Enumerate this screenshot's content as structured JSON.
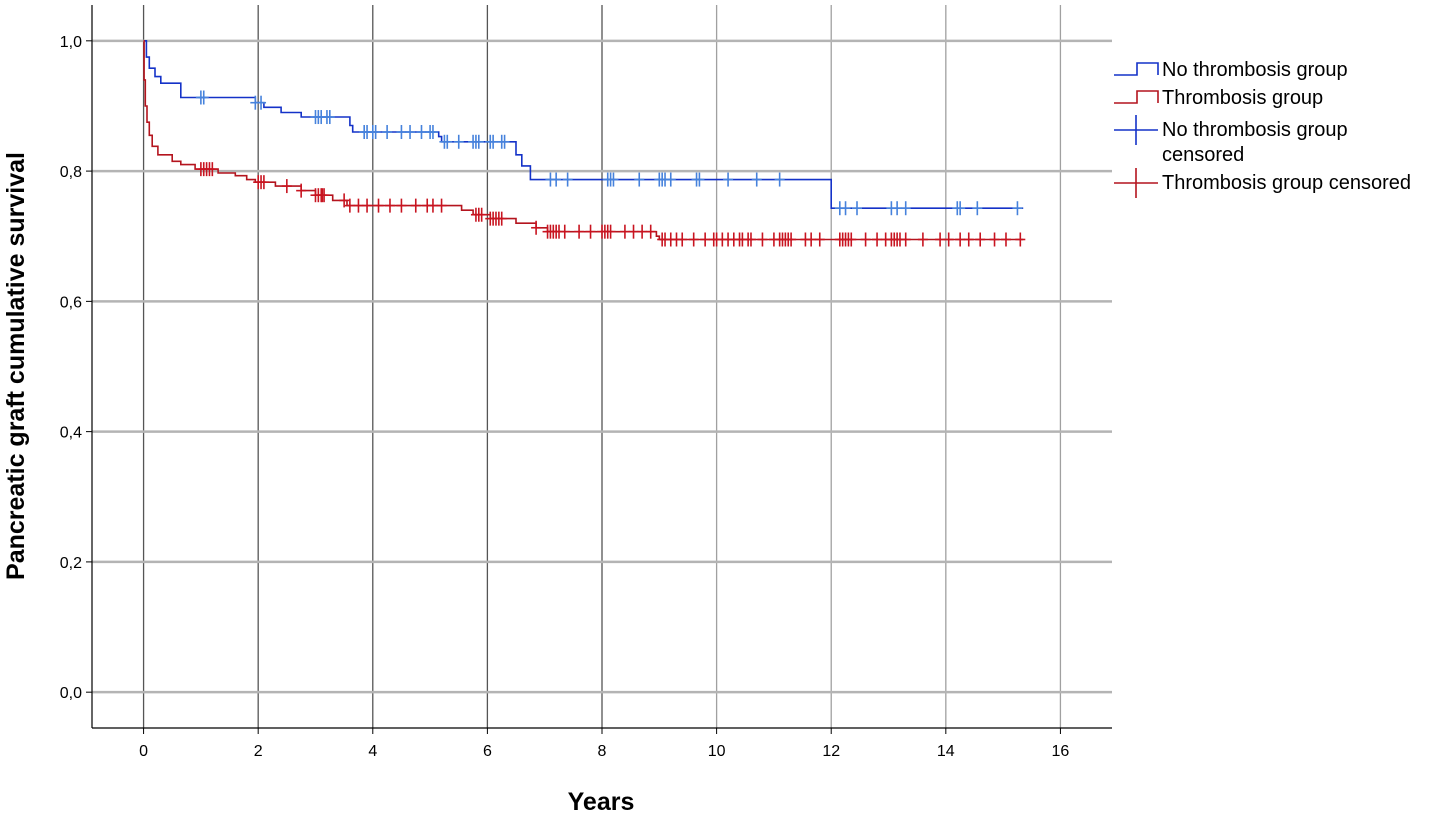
{
  "chart_data": {
    "type": "line",
    "subtype": "kaplan-meier step survival curves",
    "xlabel": "Years",
    "ylabel": "Pancreatic graft cumulative survival",
    "xlim": [
      -0.9,
      16.9
    ],
    "ylim": [
      -0.055,
      1.055
    ],
    "x_ticks": [
      0,
      2,
      4,
      6,
      8,
      10,
      12,
      14,
      16
    ],
    "x_tick_labels": [
      "0",
      "2",
      "4",
      "6",
      "8",
      "10",
      "12",
      "14",
      "16"
    ],
    "y_ticks": [
      0,
      0.2,
      0.4,
      0.6,
      0.8,
      1.0
    ],
    "y_tick_labels": [
      "0,0",
      "0,2",
      "0,4",
      "0,6",
      "0,8",
      "1,0"
    ],
    "grid": "on",
    "legend_position": "right",
    "series": [
      {
        "name": "No thrombosis group",
        "color": "#1432c8",
        "censor_color": "#4682dc",
        "steps": [
          [
            0,
            1.0
          ],
          [
            0.05,
            0.975
          ],
          [
            0.1,
            0.958
          ],
          [
            0.2,
            0.945
          ],
          [
            0.3,
            0.935
          ],
          [
            0.65,
            0.913
          ],
          [
            1.95,
            0.905
          ],
          [
            2.1,
            0.898
          ],
          [
            2.4,
            0.89
          ],
          [
            2.75,
            0.883
          ],
          [
            3.6,
            0.87
          ],
          [
            3.65,
            0.86
          ],
          [
            5.15,
            0.853
          ],
          [
            5.2,
            0.845
          ],
          [
            6.5,
            0.825
          ],
          [
            6.6,
            0.808
          ],
          [
            6.75,
            0.787
          ],
          [
            12.0,
            0.743
          ],
          [
            15.35,
            0.743
          ]
        ],
        "censored": [
          1.0,
          1.05,
          1.95,
          2.05,
          3.0,
          3.05,
          3.1,
          3.2,
          3.25,
          3.85,
          3.9,
          4.0,
          4.05,
          4.25,
          4.5,
          4.65,
          4.85,
          5.0,
          5.05,
          5.25,
          5.3,
          5.5,
          5.75,
          5.8,
          5.85,
          6.05,
          6.1,
          6.25,
          6.3,
          7.1,
          7.2,
          7.4,
          8.1,
          8.15,
          8.2,
          8.65,
          9.0,
          9.05,
          9.1,
          9.2,
          9.65,
          9.7,
          10.2,
          10.7,
          11.1,
          12.15,
          12.25,
          12.45,
          13.05,
          13.15,
          13.3,
          14.2,
          14.25,
          14.55,
          15.25
        ]
      },
      {
        "name": "Thrombosis group",
        "color": "#b4141e",
        "censor_color": "#c81420",
        "steps": [
          [
            0,
            1.0
          ],
          [
            0.01,
            0.94
          ],
          [
            0.03,
            0.9
          ],
          [
            0.06,
            0.875
          ],
          [
            0.1,
            0.855
          ],
          [
            0.15,
            0.838
          ],
          [
            0.25,
            0.825
          ],
          [
            0.5,
            0.815
          ],
          [
            0.65,
            0.81
          ],
          [
            0.9,
            0.803
          ],
          [
            1.3,
            0.797
          ],
          [
            1.6,
            0.793
          ],
          [
            1.8,
            0.787
          ],
          [
            1.95,
            0.783
          ],
          [
            2.3,
            0.777
          ],
          [
            2.75,
            0.77
          ],
          [
            3.0,
            0.763
          ],
          [
            3.3,
            0.755
          ],
          [
            3.55,
            0.747
          ],
          [
            5.55,
            0.74
          ],
          [
            5.75,
            0.733
          ],
          [
            6.05,
            0.727
          ],
          [
            6.5,
            0.72
          ],
          [
            6.85,
            0.713
          ],
          [
            7.05,
            0.707
          ],
          [
            8.95,
            0.7
          ],
          [
            9.0,
            0.695
          ],
          [
            15.35,
            0.695
          ]
        ],
        "censored": [
          1.0,
          1.05,
          1.1,
          1.15,
          1.2,
          2.0,
          2.05,
          2.1,
          2.5,
          2.75,
          3.0,
          3.05,
          3.1,
          3.12,
          3.15,
          3.5,
          3.6,
          3.75,
          3.9,
          4.1,
          4.3,
          4.5,
          4.75,
          4.95,
          5.05,
          5.2,
          5.8,
          5.85,
          5.9,
          6.05,
          6.1,
          6.15,
          6.2,
          6.25,
          6.85,
          7.05,
          7.1,
          7.15,
          7.2,
          7.25,
          7.35,
          7.6,
          7.8,
          8.0,
          8.05,
          8.1,
          8.15,
          8.4,
          8.55,
          8.7,
          8.85,
          9.05,
          9.1,
          9.2,
          9.3,
          9.4,
          9.6,
          9.8,
          9.95,
          10.0,
          10.1,
          10.2,
          10.3,
          10.4,
          10.45,
          10.55,
          10.6,
          10.8,
          11.0,
          11.1,
          11.15,
          11.2,
          11.25,
          11.3,
          11.55,
          11.65,
          11.8,
          12.15,
          12.2,
          12.25,
          12.3,
          12.35,
          12.6,
          12.8,
          12.95,
          13.05,
          13.1,
          13.15,
          13.2,
          13.3,
          13.6,
          13.9,
          14.05,
          14.25,
          14.4,
          14.6,
          14.85,
          15.05,
          15.3
        ]
      }
    ],
    "legend": [
      {
        "label": "No thrombosis group",
        "symbol": "step",
        "color": "#1432c8"
      },
      {
        "label": "Thrombosis group",
        "symbol": "step",
        "color": "#b4141e"
      },
      {
        "label": " No thrombosis group",
        "label_line2": "censored",
        "symbol": "cross",
        "color": "#1432c8"
      },
      {
        "label": "Thrombosis group censored",
        "symbol": "cross",
        "color": "#b4141e"
      }
    ]
  }
}
